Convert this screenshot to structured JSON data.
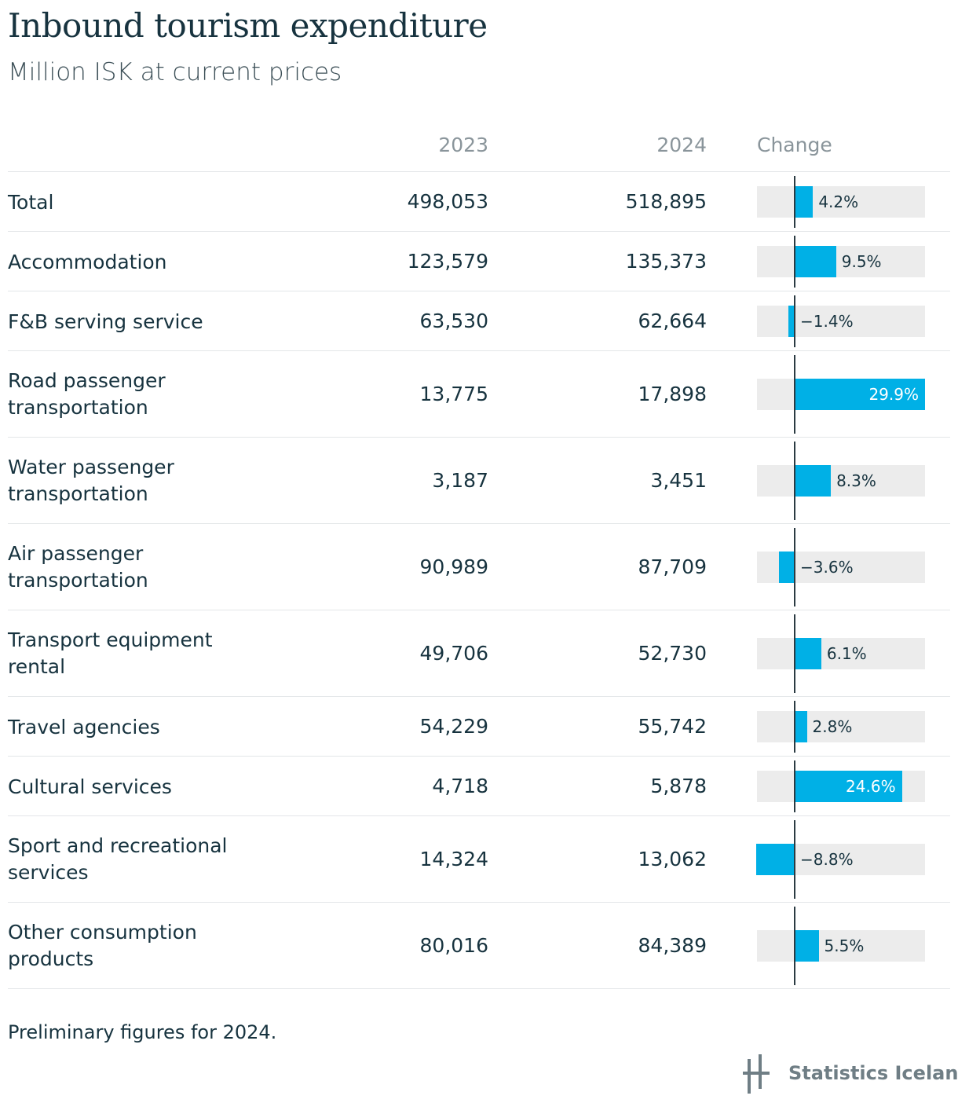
{
  "title": "Inbound tourism expenditure",
  "subtitle": "Million ISK at current prices",
  "columns": {
    "y2023": "2023",
    "y2024": "2024",
    "change": "Change"
  },
  "note": "Preliminary figures for 2024.",
  "brand": {
    "name": "Statistics Iceland",
    "logo_icon": "statistics-iceland-logo-icon",
    "bar_color": "#00b0e6",
    "track_color": "#ececec"
  },
  "chart_data": {
    "type": "table",
    "title": "Inbound tourism expenditure",
    "subtitle": "Million ISK at current prices",
    "columns": [
      "2023",
      "2024",
      "Change"
    ],
    "change_range": [
      -8.8,
      29.9
    ],
    "rows": [
      {
        "label": "Total",
        "y2023": "498,053",
        "y2024": "518,895",
        "change": 4.2,
        "change_label": "4.2%"
      },
      {
        "label": "Accommodation",
        "y2023": "123,579",
        "y2024": "135,373",
        "change": 9.5,
        "change_label": "9.5%"
      },
      {
        "label": "F&B serving service",
        "y2023": "63,530",
        "y2024": "62,664",
        "change": -1.4,
        "change_label": "−1.4%"
      },
      {
        "label": "Road passenger transportation",
        "y2023": "13,775",
        "y2024": "17,898",
        "change": 29.9,
        "change_label": "29.9%"
      },
      {
        "label": "Water passenger transportation",
        "y2023": "3,187",
        "y2024": "3,451",
        "change": 8.3,
        "change_label": "8.3%"
      },
      {
        "label": "Air passenger transportation",
        "y2023": "90,989",
        "y2024": "87,709",
        "change": -3.6,
        "change_label": "−3.6%"
      },
      {
        "label": "Transport equipment rental",
        "y2023": "49,706",
        "y2024": "52,730",
        "change": 6.1,
        "change_label": "6.1%"
      },
      {
        "label": "Travel agencies",
        "y2023": "54,229",
        "y2024": "55,742",
        "change": 2.8,
        "change_label": "2.8%"
      },
      {
        "label": "Cultural services",
        "y2023": "4,718",
        "y2024": "5,878",
        "change": 24.6,
        "change_label": "24.6%"
      },
      {
        "label": "Sport and recreational services",
        "y2023": "14,324",
        "y2024": "13,062",
        "change": -8.8,
        "change_label": "−8.8%"
      },
      {
        "label": "Other consumption products",
        "y2023": "80,016",
        "y2024": "84,389",
        "change": 5.5,
        "change_label": "5.5%"
      }
    ]
  }
}
